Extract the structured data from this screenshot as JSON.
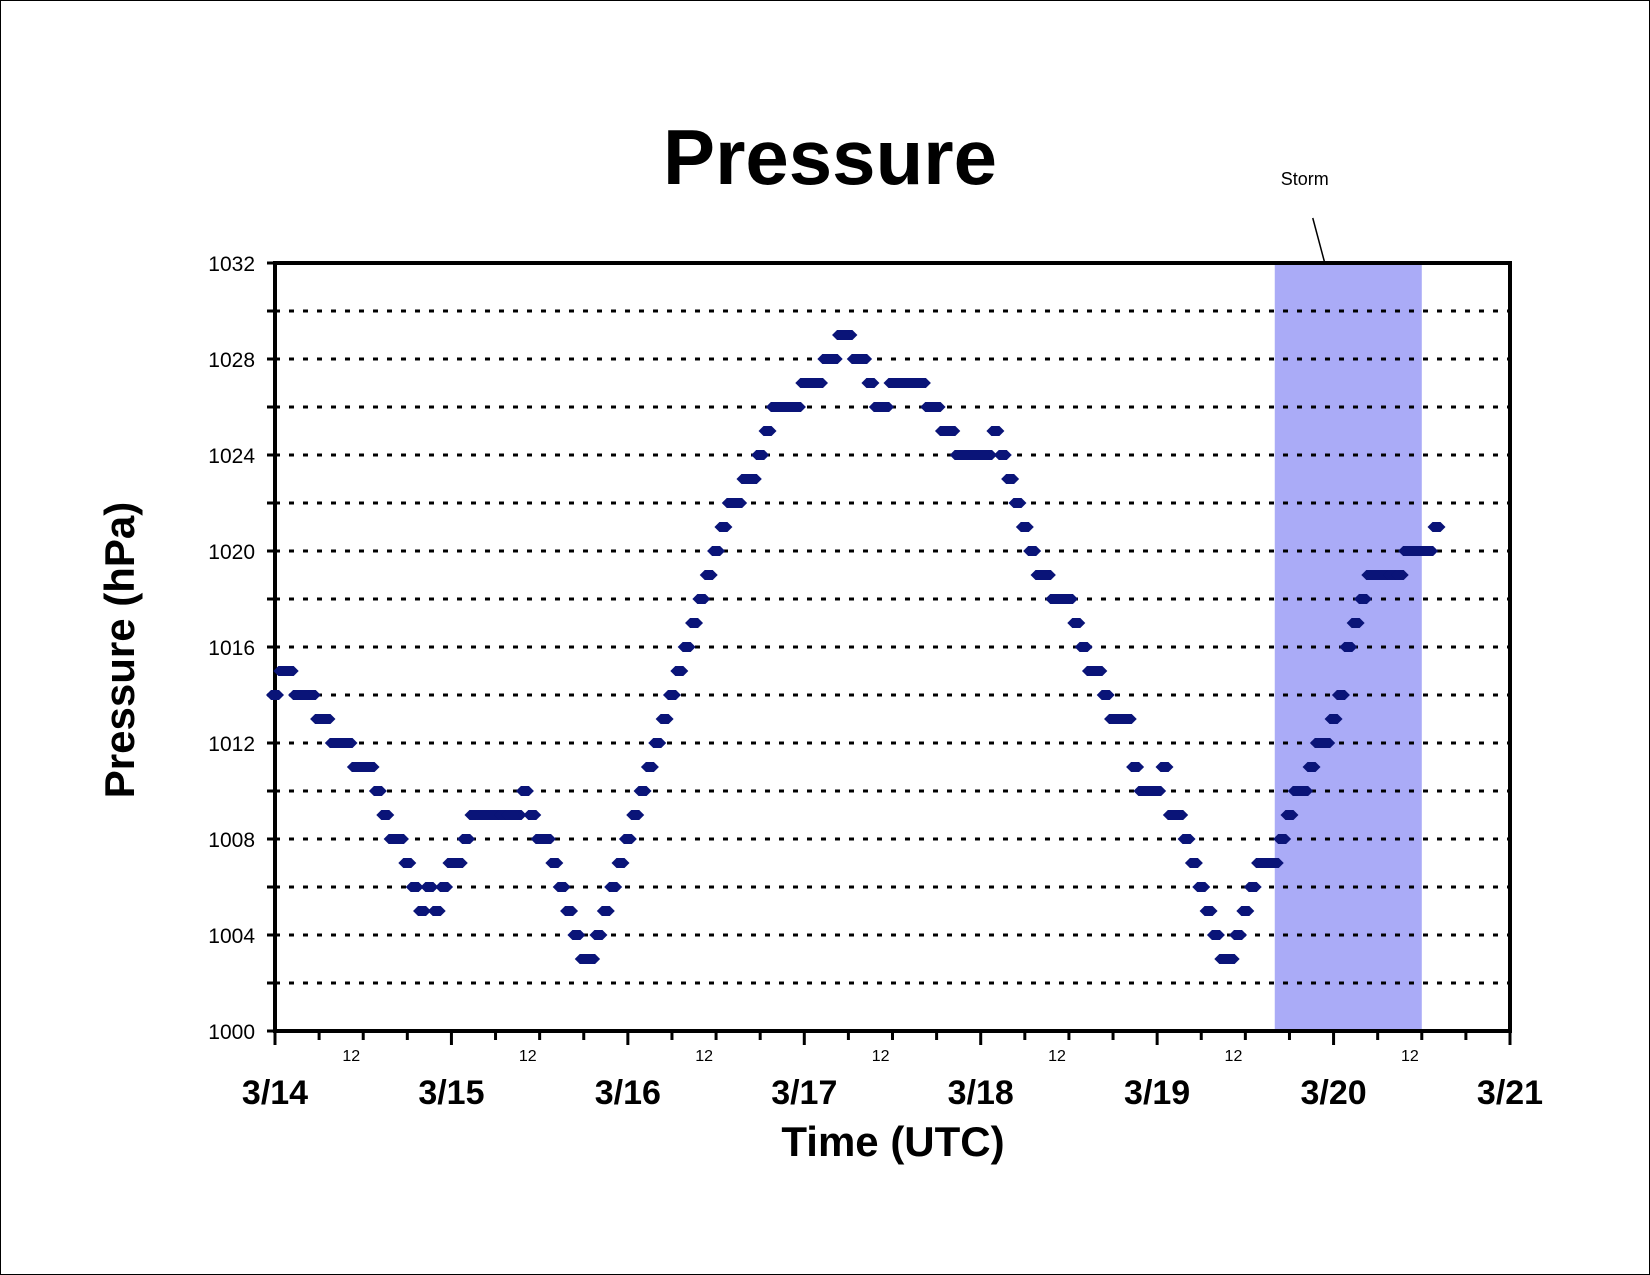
{
  "chart_data": {
    "type": "scatter",
    "title": "Pressure",
    "xlabel": "Time (UTC)",
    "ylabel": "Pressure (hPa)",
    "x_ticks": [
      "3/14",
      "3/15",
      "3/16",
      "3/17",
      "3/18",
      "3/19",
      "3/20",
      "3/21"
    ],
    "x_minor_label": "12",
    "xlim_days": [
      0,
      7
    ],
    "ylim": [
      1000,
      1032
    ],
    "y_ticks": [
      1000,
      1004,
      1008,
      1012,
      1016,
      1020,
      1024,
      1028,
      1032
    ],
    "grid": "horizontal dotted every 2 hPa",
    "marker_color": "#0a1478",
    "annotation": {
      "text": "Storm",
      "start": "3/19 16Z",
      "end": "3/20 12Z",
      "color": "#aaabf7"
    },
    "series": [
      {
        "marker": "diamond",
        "x_unit": "hours since 3/14 00Z",
        "values": [
          [
            0,
            1014
          ],
          [
            1,
            1015
          ],
          [
            2,
            1015
          ],
          [
            3,
            1014
          ],
          [
            4,
            1014
          ],
          [
            5,
            1014
          ],
          [
            6,
            1013
          ],
          [
            7,
            1013
          ],
          [
            8,
            1012
          ],
          [
            9,
            1012
          ],
          [
            10,
            1012
          ],
          [
            11,
            1011
          ],
          [
            12,
            1011
          ],
          [
            13,
            1011
          ],
          [
            14,
            1010
          ],
          [
            15,
            1009
          ],
          [
            16,
            1008
          ],
          [
            17,
            1008
          ],
          [
            18,
            1007
          ],
          [
            19,
            1006
          ],
          [
            20,
            1005
          ],
          [
            21,
            1006
          ],
          [
            22,
            1005
          ],
          [
            23,
            1006
          ],
          [
            24,
            1007
          ],
          [
            25,
            1007
          ],
          [
            26,
            1008
          ],
          [
            27,
            1009
          ],
          [
            28,
            1009
          ],
          [
            29,
            1009
          ],
          [
            30,
            1009
          ],
          [
            31,
            1009
          ],
          [
            32,
            1009
          ],
          [
            33,
            1009
          ],
          [
            34,
            1010
          ],
          [
            35,
            1009
          ],
          [
            36,
            1008
          ],
          [
            37,
            1008
          ],
          [
            38,
            1007
          ],
          [
            39,
            1006
          ],
          [
            40,
            1005
          ],
          [
            41,
            1004
          ],
          [
            42,
            1003
          ],
          [
            43,
            1003
          ],
          [
            44,
            1004
          ],
          [
            45,
            1005
          ],
          [
            46,
            1006
          ],
          [
            47,
            1007
          ],
          [
            48,
            1008
          ],
          [
            49,
            1009
          ],
          [
            50,
            1010
          ],
          [
            51,
            1011
          ],
          [
            52,
            1012
          ],
          [
            53,
            1013
          ],
          [
            54,
            1014
          ],
          [
            55,
            1015
          ],
          [
            56,
            1016
          ],
          [
            57,
            1017
          ],
          [
            58,
            1018
          ],
          [
            59,
            1019
          ],
          [
            60,
            1020
          ],
          [
            61,
            1021
          ],
          [
            62,
            1022
          ],
          [
            63,
            1022
          ],
          [
            64,
            1023
          ],
          [
            65,
            1023
          ],
          [
            66,
            1024
          ],
          [
            67,
            1025
          ],
          [
            68,
            1026
          ],
          [
            69,
            1026
          ],
          [
            70,
            1026
          ],
          [
            71,
            1026
          ],
          [
            72,
            1027
          ],
          [
            73,
            1027
          ],
          [
            74,
            1027
          ],
          [
            75,
            1028
          ],
          [
            76,
            1028
          ],
          [
            77,
            1029
          ],
          [
            78,
            1029
          ],
          [
            79,
            1028
          ],
          [
            80,
            1028
          ],
          [
            81,
            1027
          ],
          [
            82,
            1026
          ],
          [
            83,
            1026
          ],
          [
            84,
            1027
          ],
          [
            85,
            1027
          ],
          [
            86,
            1027
          ],
          [
            87,
            1027
          ],
          [
            88,
            1027
          ],
          [
            89,
            1026
          ],
          [
            90,
            1026
          ],
          [
            91,
            1025
          ],
          [
            92,
            1025
          ],
          [
            93,
            1024
          ],
          [
            94,
            1024
          ],
          [
            95,
            1024
          ],
          [
            96,
            1024
          ],
          [
            97,
            1024
          ],
          [
            98,
            1025
          ],
          [
            99,
            1024
          ],
          [
            100,
            1023
          ],
          [
            101,
            1022
          ],
          [
            102,
            1021
          ],
          [
            103,
            1020
          ],
          [
            104,
            1019
          ],
          [
            105,
            1019
          ],
          [
            106,
            1018
          ],
          [
            107,
            1018
          ],
          [
            108,
            1018
          ],
          [
            109,
            1017
          ],
          [
            110,
            1016
          ],
          [
            111,
            1015
          ],
          [
            112,
            1015
          ],
          [
            113,
            1014
          ],
          [
            114,
            1013
          ],
          [
            115,
            1013
          ],
          [
            116,
            1013
          ],
          [
            117,
            1011
          ],
          [
            118,
            1010
          ],
          [
            119,
            1010
          ],
          [
            120,
            1010
          ],
          [
            121,
            1011
          ],
          [
            122,
            1009
          ],
          [
            123,
            1009
          ],
          [
            124,
            1008
          ],
          [
            125,
            1007
          ],
          [
            126,
            1006
          ],
          [
            127,
            1005
          ],
          [
            128,
            1004
          ],
          [
            129,
            1003
          ],
          [
            130,
            1003
          ],
          [
            131,
            1004
          ],
          [
            132,
            1005
          ],
          [
            133,
            1006
          ],
          [
            134,
            1007
          ],
          [
            135,
            1007
          ],
          [
            136,
            1007
          ],
          [
            137,
            1008
          ],
          [
            138,
            1009
          ],
          [
            139,
            1010
          ],
          [
            140,
            1010
          ],
          [
            141,
            1011
          ],
          [
            142,
            1012
          ],
          [
            143,
            1012
          ],
          [
            144,
            1013
          ],
          [
            145,
            1014
          ],
          [
            146,
            1016
          ],
          [
            147,
            1017
          ],
          [
            148,
            1018
          ],
          [
            149,
            1019
          ],
          [
            150,
            1019
          ],
          [
            151,
            1019
          ],
          [
            152,
            1019
          ],
          [
            153,
            1019
          ],
          [
            154,
            1020
          ],
          [
            155,
            1020
          ],
          [
            156,
            1020
          ],
          [
            157,
            1020
          ],
          [
            158,
            1021
          ]
        ]
      }
    ]
  }
}
